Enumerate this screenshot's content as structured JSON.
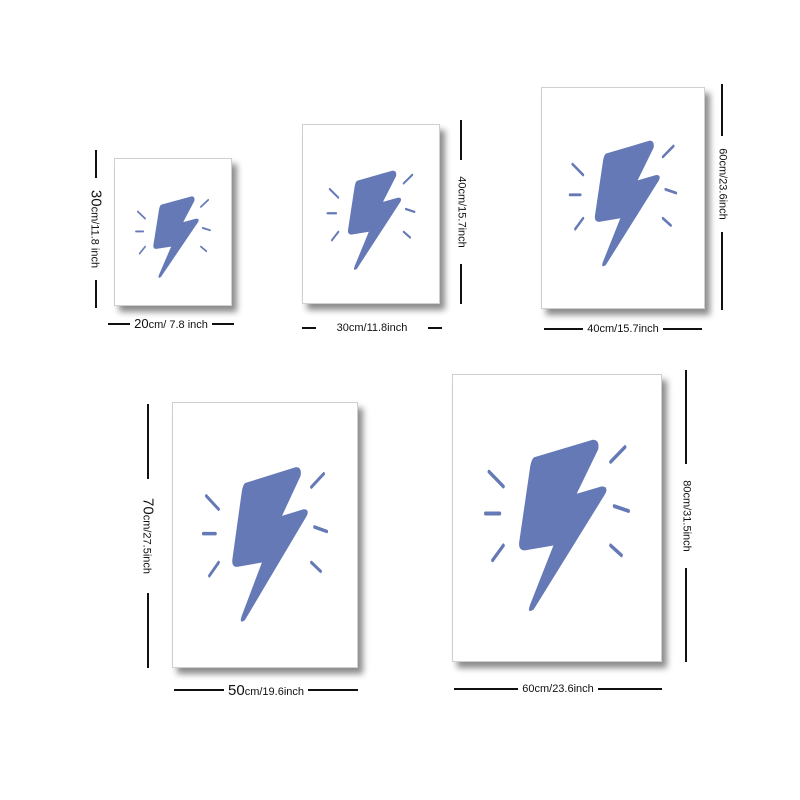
{
  "colors": {
    "bolt": "#6479b5",
    "background": "#ffffff",
    "dimension_line": "#111111"
  },
  "posters": [
    {
      "name": "20x30",
      "icon": "lightning-bolt-icon",
      "width_label": {
        "num": "20",
        "unit": "cm/ 7.8 inch"
      },
      "height_label": {
        "num": "30",
        "unit": "cm/11.8 inch"
      }
    },
    {
      "name": "30x40",
      "icon": "lightning-bolt-icon",
      "width_label": {
        "num": "30cm/11.8inch",
        "unit": ""
      },
      "height_label": {
        "num": "40cm/15.7inch",
        "unit": ""
      }
    },
    {
      "name": "40x60",
      "icon": "lightning-bolt-icon",
      "width_label": {
        "num": "40cm/15.7inch",
        "unit": ""
      },
      "height_label": {
        "num": "60cm/23.6inch",
        "unit": ""
      }
    },
    {
      "name": "50x70",
      "icon": "lightning-bolt-icon",
      "width_label": {
        "num": "50",
        "unit": "cm/19.6inch"
      },
      "height_label": {
        "num": "70",
        "unit": "cm/27.5inch"
      }
    },
    {
      "name": "60x80",
      "icon": "lightning-bolt-icon",
      "width_label": {
        "num": "60cm/23.6inch",
        "unit": ""
      },
      "height_label": {
        "num": "80cm/31.5inch",
        "unit": ""
      }
    }
  ]
}
